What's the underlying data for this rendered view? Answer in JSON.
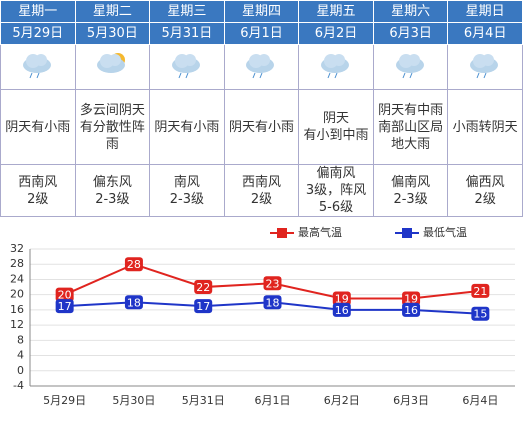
{
  "table": {
    "days": [
      "星期一",
      "星期二",
      "星期三",
      "星期四",
      "星期五",
      "星期六",
      "星期日"
    ],
    "dates": [
      "5月29日",
      "5月30日",
      "5月31日",
      "6月1日",
      "6月2日",
      "6月3日",
      "6月4日"
    ],
    "weather": [
      [
        "阴天有小雨"
      ],
      [
        "多云间阴天有分散性阵雨"
      ],
      [
        "阴天有小雨"
      ],
      [
        "阴天有小雨"
      ],
      [
        "阴天",
        "有小到中雨"
      ],
      [
        "阴天有中雨南部山区局地大雨"
      ],
      [
        "小雨转阴天"
      ]
    ],
    "wind": [
      [
        "西南风",
        "2级"
      ],
      [
        "偏东风",
        "2-3级"
      ],
      [
        "南风",
        "2-3级"
      ],
      [
        "西南风",
        "2级"
      ],
      [
        "偏南风",
        "3级，阵风",
        "5-6级"
      ],
      [
        "偏南风",
        "2-3级"
      ],
      [
        "偏西风",
        "2级"
      ]
    ]
  },
  "chart_data": {
    "type": "line",
    "categories": [
      "5月29日",
      "5月30日",
      "5月31日",
      "6月1日",
      "6月2日",
      "6月3日",
      "6月4日"
    ],
    "series": [
      {
        "name": "最高气温",
        "color": "#e0241f",
        "values": [
          20,
          28,
          22,
          23,
          19,
          19,
          21
        ]
      },
      {
        "name": "最低气温",
        "color": "#1f35c8",
        "values": [
          17,
          18,
          17,
          18,
          16,
          16,
          15
        ]
      }
    ],
    "ylim": [
      -4,
      32
    ],
    "yticks": [
      -4,
      0,
      4,
      8,
      12,
      16,
      20,
      24,
      28,
      32
    ],
    "grid": true
  }
}
